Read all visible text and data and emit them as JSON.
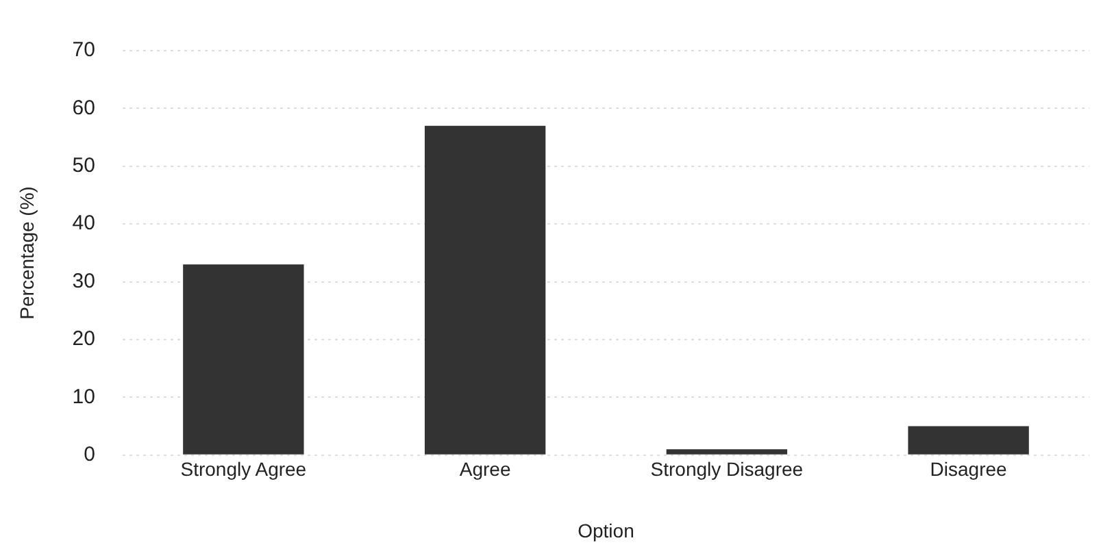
{
  "chart_data": {
    "type": "bar",
    "xlabel": "Option",
    "ylabel": "Percentage (%)",
    "categories": [
      "Strongly Agree",
      "Agree",
      "Strongly Disagree",
      "Disagree"
    ],
    "values": [
      33,
      57,
      1,
      5
    ],
    "color": "#333333",
    "ylim": [
      0,
      70
    ],
    "yticks": [
      0,
      10,
      20,
      30,
      40,
      50,
      60,
      70
    ],
    "grid": "y"
  }
}
